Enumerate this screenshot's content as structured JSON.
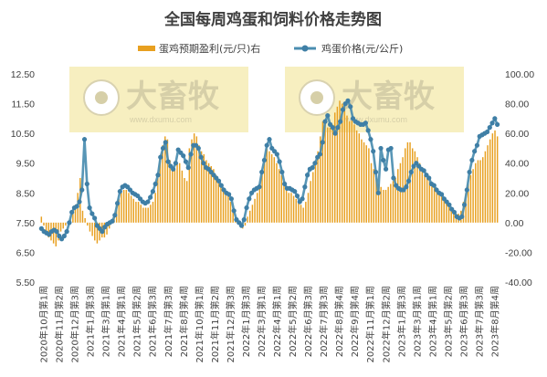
{
  "chart_data": {
    "type": "bar-line",
    "title": "全国每周鸡蛋和饲料价格走势图",
    "watermark": {
      "text": "大畜牧",
      "url": "www.dxumu.com"
    },
    "colors": {
      "bar": "#E8A020",
      "line": "#4A8DB0",
      "marker": "#3F7FA6",
      "text": "#404040",
      "watermark_bg": "#F7EFC0"
    },
    "legend": [
      {
        "name": "蛋鸡预期盈利(元/只)右",
        "kind": "bar"
      },
      {
        "name": "鸡蛋价格(元/公斤)",
        "kind": "line"
      }
    ],
    "y_left": {
      "ylim": [
        5.5,
        12.5
      ],
      "ticks": [
        "12.50",
        "11.50",
        "10.50",
        "9.50",
        "8.50",
        "7.50",
        "6.50",
        "5.50"
      ]
    },
    "y_right": {
      "ylim": [
        -40,
        100
      ],
      "ticks": [
        "100.00",
        "80.00",
        "60.00",
        "40.00",
        "20.00",
        "0.00",
        "-20.00",
        "-40.00"
      ]
    },
    "x_tick_labels": [
      "2020年10月第1周",
      "2020年11月第2周",
      "2020年12月第3周",
      "2021年1月第3周",
      "2021年3月第1周",
      "2021年4月第1周",
      "2021年5月第2周",
      "2021年6月第3周",
      "2021年7月第3周",
      "2021年8月第4周",
      "2021年10月第1周",
      "2021年11月第2周",
      "2021年12月第3周",
      "2022年1月第3周",
      "2022年3月第1周",
      "2022年4月第1周",
      "2022年5月第2周",
      "2022年6月第3周",
      "2022年7月第3周",
      "2022年8月第4周",
      "2022年9月第4周",
      "2022年11月第1周",
      "2022年12月第2周",
      "2023年1月第3周",
      "2023年3月第1周",
      "2023年4月第1周",
      "2023年5月第2周",
      "2023年6月第3周",
      "2023年7月第3周",
      "2023年8月第4周"
    ],
    "series": [
      {
        "name": "蛋鸡预期盈利(元/只)右",
        "axis": "right",
        "type": "bar",
        "values": [
          4,
          -2,
          -8,
          -10,
          -12,
          -14,
          -16,
          -12,
          -6,
          -4,
          -2,
          0,
          2,
          6,
          12,
          20,
          30,
          8,
          3,
          -2,
          -6,
          -9,
          -12,
          -14,
          -12,
          -10,
          -10,
          -8,
          -4,
          0,
          6,
          12,
          16,
          20,
          22,
          22,
          20,
          18,
          16,
          14,
          14,
          12,
          10,
          10,
          10,
          12,
          14,
          20,
          30,
          42,
          52,
          58,
          56,
          42,
          38,
          36,
          40,
          40,
          35,
          30,
          28,
          50,
          56,
          60,
          58,
          52,
          48,
          46,
          42,
          40,
          38,
          36,
          32,
          28,
          24,
          22,
          20,
          18,
          14,
          10,
          4,
          0,
          -2,
          -4,
          -2,
          4,
          8,
          12,
          16,
          20,
          26,
          34,
          42,
          50,
          48,
          46,
          44,
          40,
          36,
          32,
          28,
          24,
          20,
          20,
          18,
          16,
          14,
          12,
          10,
          14,
          20,
          28,
          34,
          40,
          48,
          58,
          68,
          66,
          64,
          64,
          66,
          74,
          78,
          82,
          80,
          78,
          72,
          68,
          70,
          66,
          62,
          60,
          56,
          54,
          52,
          50,
          40,
          36,
          30,
          26,
          24,
          22,
          22,
          24,
          26,
          28,
          30,
          36,
          40,
          44,
          50,
          54,
          54,
          50,
          48,
          44,
          40,
          36,
          32,
          30,
          28,
          26,
          24,
          22,
          20,
          18,
          16,
          14,
          12,
          10,
          8,
          6,
          6,
          8,
          14,
          20,
          26,
          32,
          36,
          40,
          42,
          42,
          44,
          48,
          52,
          56,
          60,
          62,
          58
        ]
      },
      {
        "name": "鸡蛋价格(元/公斤)",
        "axis": "left",
        "type": "line",
        "values": [
          7.3,
          7.2,
          7.15,
          7.1,
          7.2,
          7.25,
          7.2,
          7.05,
          6.95,
          7.05,
          7.2,
          7.5,
          7.85,
          8.0,
          8.05,
          8.2,
          8.6,
          10.3,
          8.8,
          8.0,
          7.8,
          7.65,
          7.4,
          7.3,
          7.2,
          7.35,
          7.45,
          7.5,
          7.55,
          7.75,
          8.15,
          8.55,
          8.7,
          8.75,
          8.7,
          8.6,
          8.5,
          8.45,
          8.4,
          8.3,
          8.2,
          8.15,
          8.2,
          8.35,
          8.55,
          8.8,
          9.1,
          9.7,
          10.0,
          10.2,
          9.55,
          9.4,
          9.3,
          9.5,
          9.95,
          9.85,
          9.75,
          9.55,
          9.35,
          9.8,
          10.1,
          10.1,
          10.0,
          9.7,
          9.5,
          9.35,
          9.3,
          9.2,
          9.1,
          9.0,
          8.9,
          8.75,
          8.6,
          8.5,
          8.45,
          8.3,
          7.9,
          7.6,
          7.5,
          7.4,
          7.6,
          8.0,
          8.3,
          8.5,
          8.6,
          8.65,
          8.7,
          9.2,
          9.6,
          10.1,
          10.3,
          10.0,
          9.9,
          9.8,
          9.55,
          9.2,
          8.8,
          8.65,
          8.65,
          8.6,
          8.55,
          8.4,
          8.2,
          8.3,
          8.7,
          9.1,
          9.3,
          9.35,
          9.5,
          9.7,
          9.8,
          10.2,
          10.9,
          11.1,
          10.8,
          10.7,
          10.5,
          10.7,
          10.9,
          11.3,
          11.5,
          11.6,
          11.4,
          11.0,
          10.9,
          10.85,
          10.8,
          10.8,
          10.85,
          10.6,
          10.3,
          9.9,
          9.2,
          8.5,
          10.0,
          9.6,
          9.3,
          9.95,
          10.0,
          9.0,
          8.75,
          8.65,
          8.6,
          8.6,
          8.7,
          8.9,
          9.2,
          9.4,
          9.5,
          9.4,
          9.3,
          9.25,
          9.1,
          9.0,
          8.8,
          8.75,
          8.6,
          8.5,
          8.45,
          8.3,
          8.2,
          8.1,
          7.95,
          7.85,
          7.7,
          7.65,
          7.7,
          8.1,
          8.6,
          9.2,
          9.6,
          9.9,
          10.1,
          10.4,
          10.45,
          10.5,
          10.55,
          10.7,
          10.85,
          11.0,
          10.8
        ]
      }
    ]
  }
}
